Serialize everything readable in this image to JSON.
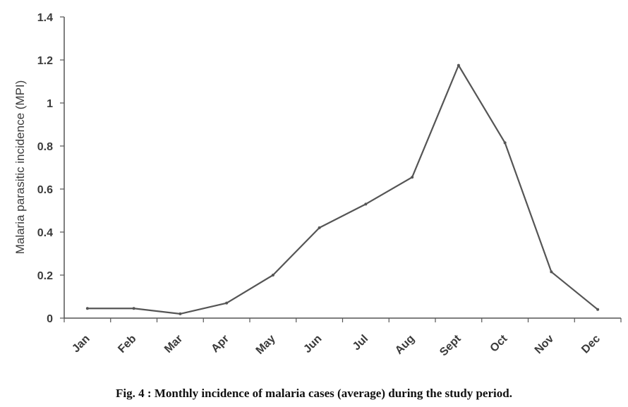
{
  "chart_data": {
    "type": "line",
    "title": "",
    "xlabel": "",
    "ylabel": "Malaria parasitic incidence (MPI)",
    "ylim": [
      0,
      1.4
    ],
    "yticks": [
      0,
      0.2,
      0.4,
      0.6,
      0.8,
      1,
      1.2,
      1.4
    ],
    "ytick_labels": [
      "0",
      "0.2",
      "0.4",
      "0.6",
      "0.8",
      "1",
      "1.2",
      "1.4"
    ],
    "categories": [
      "Jan",
      "Feb",
      "Mar",
      "Apr",
      "May",
      "Jun",
      "Jul",
      "Aug",
      "Sept",
      "Oct",
      "Nov",
      "Dec"
    ],
    "series": [
      {
        "name": "MPI",
        "values": [
          0.045,
          0.045,
          0.02,
          0.07,
          0.2,
          0.42,
          0.53,
          0.655,
          1.175,
          0.815,
          0.215,
          0.04
        ]
      }
    ],
    "line_color": "#555555",
    "caption": "Fig. 4 : Monthly incidence of malaria cases (average) during the study period."
  }
}
